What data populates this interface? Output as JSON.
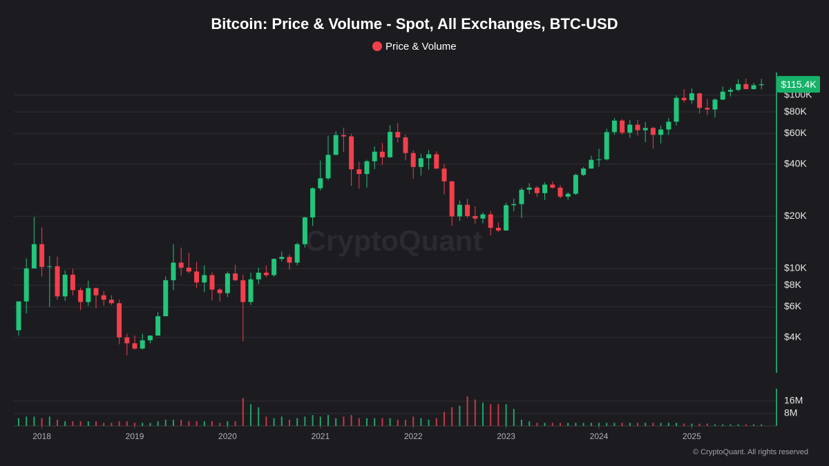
{
  "chart_data": {
    "type": "candlestick",
    "title": "Bitcoin: Price & Volume - Spot, All Exchanges, BTC-USD",
    "watermark": "CryptoQuant",
    "footer": "© CryptoQuant. All rights reserved",
    "log_scale": true,
    "ylim": [
      2500,
      135000
    ],
    "yticks": [
      {
        "value": 4000,
        "label": "$4K"
      },
      {
        "value": 6000,
        "label": "$6K"
      },
      {
        "value": 8000,
        "label": "$8K"
      },
      {
        "value": 10000,
        "label": "$10K"
      },
      {
        "value": 20000,
        "label": "$20K"
      },
      {
        "value": 40000,
        "label": "$40K"
      },
      {
        "value": 60000,
        "label": "$60K"
      },
      {
        "value": 80000,
        "label": "$80K"
      },
      {
        "value": 100000,
        "label": "$100K"
      }
    ],
    "y2lim": [
      0,
      24
    ],
    "y2ticks": [
      {
        "value": 8,
        "label": "8M"
      },
      {
        "value": 16,
        "label": "16M"
      }
    ],
    "xticks": [
      2018,
      2019,
      2020,
      2021,
      2022,
      2023,
      2024,
      2025
    ],
    "last_price": {
      "value": 115400,
      "label": "$115.4K"
    },
    "x": [
      "2017-10",
      "2017-11",
      "2017-12",
      "2018-01",
      "2018-02",
      "2018-03",
      "2018-04",
      "2018-05",
      "2018-06",
      "2018-07",
      "2018-08",
      "2018-09",
      "2018-10",
      "2018-11",
      "2018-12",
      "2019-01",
      "2019-02",
      "2019-03",
      "2019-04",
      "2019-05",
      "2019-06",
      "2019-07",
      "2019-08",
      "2019-09",
      "2019-10",
      "2019-11",
      "2019-12",
      "2020-01",
      "2020-02",
      "2020-03",
      "2020-04",
      "2020-05",
      "2020-06",
      "2020-07",
      "2020-08",
      "2020-09",
      "2020-10",
      "2020-11",
      "2020-12",
      "2021-01",
      "2021-02",
      "2021-03",
      "2021-04",
      "2021-05",
      "2021-06",
      "2021-07",
      "2021-08",
      "2021-09",
      "2021-10",
      "2021-11",
      "2021-12",
      "2022-01",
      "2022-02",
      "2022-03",
      "2022-04",
      "2022-05",
      "2022-06",
      "2022-07",
      "2022-08",
      "2022-09",
      "2022-10",
      "2022-11",
      "2022-12",
      "2023-01",
      "2023-02",
      "2023-03",
      "2023-04",
      "2023-05",
      "2023-06",
      "2023-07",
      "2023-08",
      "2023-09",
      "2023-10",
      "2023-11",
      "2023-12",
      "2024-01",
      "2024-02",
      "2024-03",
      "2024-04",
      "2024-05",
      "2024-06",
      "2024-07",
      "2024-08",
      "2024-09",
      "2024-10",
      "2024-11",
      "2024-12",
      "2025-01",
      "2025-02",
      "2025-03",
      "2025-04",
      "2025-05",
      "2025-06",
      "2025-07",
      "2025-08",
      "2025-09",
      "2025-10"
    ],
    "series": [
      {
        "name": "Price & Volume",
        "color": "#f23f4c",
        "up_color": "#22c57a",
        "down_color": "#f23f4c",
        "open": [
          4400,
          6450,
          10000,
          13800,
          10200,
          10300,
          6900,
          9200,
          7500,
          6400,
          7700,
          7000,
          6600,
          6300,
          4000,
          3700,
          3450,
          3850,
          4100,
          5300,
          8550,
          10800,
          10100,
          9600,
          8300,
          9150,
          7550,
          7200,
          9350,
          8550,
          6400,
          8650,
          9450,
          9150,
          11350,
          11650,
          10800,
          13800,
          19700,
          29000,
          33100,
          45200,
          58800,
          57750,
          37300,
          35050,
          41500,
          47150,
          43800,
          61300,
          57000,
          46300,
          38500,
          43200,
          45550,
          37650,
          31800,
          19950,
          23300,
          20050,
          19400,
          20500,
          17150,
          16550,
          23150,
          23500,
          28450,
          29250,
          27200,
          30450,
          29250,
          25950,
          26950,
          34650,
          37700,
          42300,
          42600,
          61150,
          71300,
          60650,
          67500,
          62700,
          64600,
          58950,
          63300,
          70200,
          96400,
          93400,
          102400,
          84350,
          82550,
          94200,
          104600,
          107150,
          115750,
          108250,
          114050
        ],
        "high": [
          6450,
          11400,
          19800,
          17200,
          11800,
          11700,
          9750,
          9950,
          7750,
          8500,
          7750,
          7400,
          7000,
          6600,
          4200,
          4100,
          4200,
          4100,
          5600,
          9000,
          13800,
          13200,
          12300,
          10900,
          10400,
          9500,
          7700,
          9600,
          10500,
          9200,
          9450,
          10100,
          10400,
          11450,
          12500,
          12050,
          14100,
          19850,
          29300,
          41950,
          58350,
          61800,
          64850,
          59600,
          41300,
          42300,
          50500,
          52900,
          67000,
          69000,
          59100,
          48000,
          45800,
          48200,
          47450,
          40000,
          31950,
          24650,
          25200,
          22800,
          21000,
          21450,
          18400,
          23950,
          25250,
          29200,
          31000,
          29850,
          31400,
          31800,
          30250,
          27500,
          35200,
          38400,
          44700,
          48950,
          64000,
          73800,
          72800,
          71950,
          71950,
          70000,
          65600,
          66500,
          73600,
          99600,
          108300,
          109300,
          102750,
          95000,
          95700,
          111900,
          110500,
          123200,
          124400,
          117900,
          124000
        ],
        "low": [
          4100,
          5500,
          10900,
          9000,
          6000,
          6600,
          6500,
          7000,
          5750,
          6100,
          5900,
          6100,
          6150,
          3650,
          3150,
          3400,
          3400,
          3700,
          4100,
          5300,
          7500,
          9100,
          9400,
          7700,
          7300,
          6550,
          6450,
          6850,
          8450,
          3800,
          6150,
          8100,
          8900,
          8950,
          10950,
          9850,
          10400,
          13200,
          17600,
          28150,
          32300,
          45000,
          47000,
          30000,
          28800,
          29300,
          37350,
          39600,
          43300,
          53250,
          42000,
          32950,
          34300,
          37200,
          37600,
          26700,
          17600,
          18800,
          19550,
          18150,
          18200,
          15500,
          16250,
          16500,
          21400,
          19550,
          26950,
          25850,
          24800,
          28850,
          25350,
          24900,
          26550,
          34100,
          37600,
          38550,
          41900,
          59000,
          59200,
          56550,
          58400,
          53500,
          49100,
          52550,
          58900,
          66800,
          90500,
          89200,
          78200,
          76600,
          74500,
          93400,
          98200,
          105300,
          108000,
          107300,
          108000
        ],
        "close": [
          6450,
          10000,
          13800,
          10200,
          10300,
          6900,
          9200,
          7500,
          6400,
          7700,
          7000,
          6600,
          6300,
          4000,
          3700,
          3450,
          3850,
          4100,
          5300,
          8550,
          10800,
          10100,
          9600,
          8300,
          9150,
          7550,
          7200,
          9350,
          8550,
          6400,
          8650,
          9450,
          9150,
          11350,
          11650,
          10800,
          13800,
          19700,
          29000,
          33100,
          45200,
          58800,
          57750,
          37300,
          35050,
          41500,
          47150,
          43800,
          61300,
          57000,
          46300,
          38500,
          43200,
          45550,
          37650,
          31800,
          19950,
          23300,
          20050,
          19400,
          20500,
          17150,
          16550,
          23150,
          23500,
          28450,
          29250,
          27200,
          30450,
          29250,
          25950,
          26950,
          34650,
          37700,
          42300,
          42600,
          61150,
          71300,
          60650,
          67500,
          62700,
          64600,
          58950,
          63300,
          70200,
          96400,
          93400,
          102400,
          84350,
          82550,
          94200,
          104600,
          107150,
          115750,
          108250,
          114050,
          115400
        ],
        "volume": [
          5,
          6,
          6,
          5,
          6,
          4,
          3,
          3,
          3,
          3,
          3,
          2,
          2,
          3,
          3,
          2,
          2,
          2,
          3,
          4,
          4,
          4,
          3,
          3,
          3,
          3,
          2,
          3,
          3,
          18,
          14,
          12,
          6,
          5,
          6,
          4,
          5,
          6,
          7,
          6,
          7,
          5,
          6,
          7,
          5,
          5,
          5,
          5,
          5,
          4,
          4,
          6,
          5,
          4,
          5,
          9,
          12,
          13,
          19,
          17,
          15,
          14,
          14,
          14,
          11,
          4,
          3,
          2,
          2,
          2,
          2,
          2,
          2,
          2,
          2,
          2,
          2,
          2,
          2,
          2,
          2,
          2,
          2,
          2,
          2,
          2,
          1.5,
          1.5,
          1.5,
          1.5,
          1,
          1,
          1,
          1,
          1,
          1,
          1
        ]
      }
    ]
  }
}
